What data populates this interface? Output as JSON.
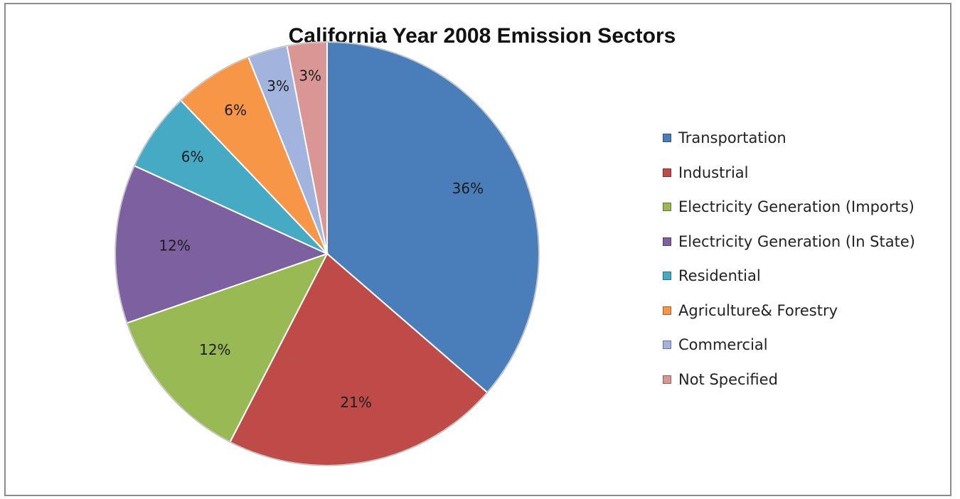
{
  "chart_data": {
    "type": "pie",
    "title": "California Year 2008 Emission Sectors",
    "slices": [
      {
        "label": "Transportation",
        "value": 36,
        "display": "36%",
        "color": "#4a7ebb"
      },
      {
        "label": "Industrial",
        "value": 21,
        "display": "21%",
        "color": "#be4b48"
      },
      {
        "label": "Electricity Generation (Imports)",
        "value": 12,
        "display": "12%",
        "color": "#98b954"
      },
      {
        "label": "Electricity Generation (In State)",
        "value": 12,
        "display": "12%",
        "color": "#7d60a0"
      },
      {
        "label": "Residential",
        "value": 6,
        "display": "6%",
        "color": "#46aac5"
      },
      {
        "label": "Agriculture& Forestry",
        "value": 6,
        "display": "6%",
        "color": "#f79646"
      },
      {
        "label": "Commercial",
        "value": 3,
        "display": "3%",
        "color": "#a2b4dd"
      },
      {
        "label": "Not Specified",
        "value": 3,
        "display": "3%",
        "color": "#d99695"
      }
    ],
    "legend_position": "right"
  }
}
